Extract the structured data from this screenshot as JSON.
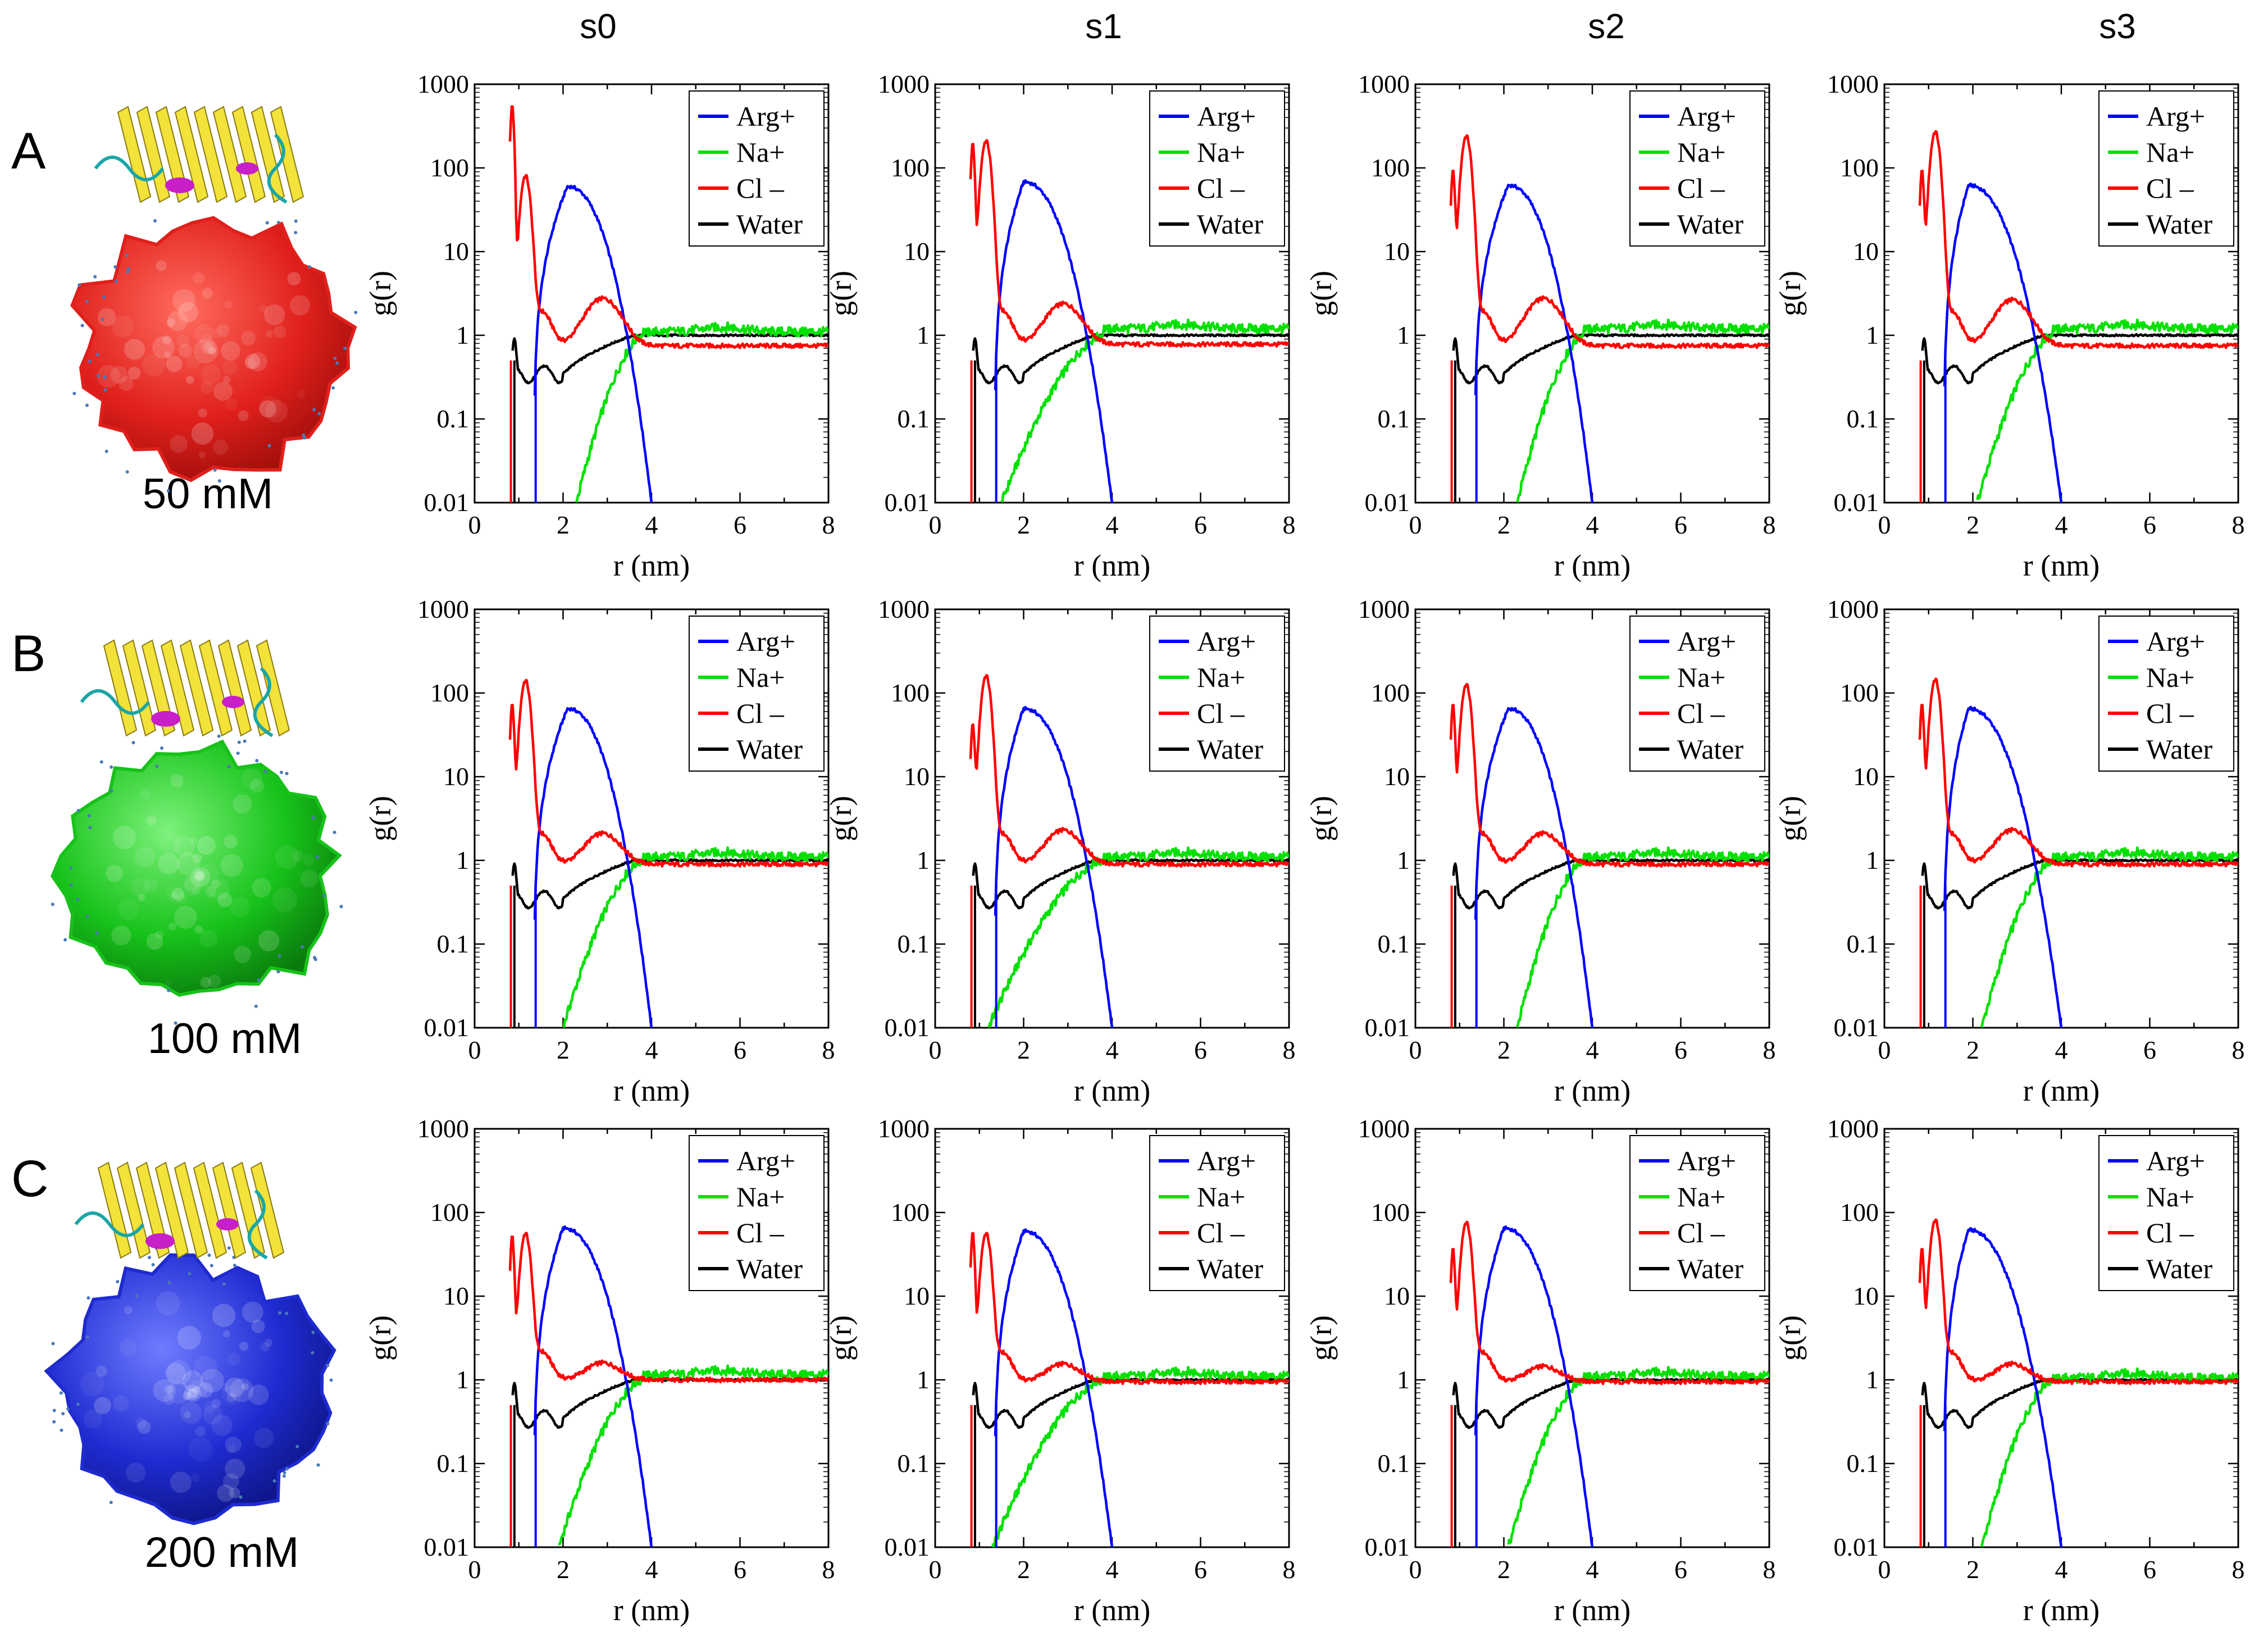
{
  "figure": {
    "column_headers": [
      "s0",
      "s1",
      "s2",
      "s3"
    ],
    "rows": [
      {
        "letter": "A",
        "concentration": "50 mM"
      },
      {
        "letter": "B",
        "concentration": "100 mM"
      },
      {
        "letter": "C",
        "concentration": "200 mM"
      }
    ],
    "protein_label": "protein structure with ion cloud",
    "colors": {
      "arg": "#0000ff",
      "na": "#00e000",
      "cl": "#ff0000",
      "water": "#000000",
      "cloud_A": "#e0201c",
      "cloud_B": "#17c21a",
      "cloud_C": "#1f2bd0",
      "protein": "#f2e23a"
    }
  },
  "chart_data": {
    "type": "line",
    "layout": "grid 3 rows x 4 columns",
    "xlabel": "r (nm)",
    "ylabel": "g(r)",
    "xlim": [
      0,
      8
    ],
    "ylim": [
      0.01,
      1000
    ],
    "yscale": "log",
    "xticks": [
      0,
      2,
      4,
      6,
      8
    ],
    "yticks": [
      0.01,
      0.1,
      1,
      10,
      100,
      1000
    ],
    "ytick_labels": [
      "0.01",
      "0.1",
      "1",
      "10",
      "100",
      "1000"
    ],
    "legend": [
      "Arg+",
      "Na+",
      "Cl –",
      "Water"
    ],
    "legend_position": "top-right",
    "panels": [
      {
        "row": "A",
        "col": "s0",
        "arg_peak": 60,
        "arg_peak_r": 2.1,
        "cl_peak1": 540,
        "cl_peak2": 80,
        "cl_bump": 3.0,
        "cl_plateau": 0.75,
        "na_start_r": 2.3,
        "na_plateau": 1.1
      },
      {
        "row": "A",
        "col": "s1",
        "arg_peak": 68,
        "arg_peak_r": 2.0,
        "cl_peak1": 190,
        "cl_peak2": 210,
        "cl_bump": 2.6,
        "cl_plateau": 0.78,
        "na_start_r": 1.5,
        "na_plateau": 1.2
      },
      {
        "row": "A",
        "col": "s2",
        "arg_peak": 62,
        "arg_peak_r": 2.1,
        "cl_peak1": 90,
        "cl_peak2": 240,
        "cl_bump": 3.0,
        "cl_plateau": 0.75,
        "na_start_r": 2.3,
        "na_plateau": 1.2
      },
      {
        "row": "A",
        "col": "s3",
        "arg_peak": 62,
        "arg_peak_r": 1.9,
        "cl_peak1": 90,
        "cl_peak2": 270,
        "cl_bump": 2.9,
        "cl_plateau": 0.75,
        "na_start_r": 2.1,
        "na_plateau": 1.2
      },
      {
        "row": "B",
        "col": "s0",
        "arg_peak": 65,
        "arg_peak_r": 2.1,
        "cl_peak1": 70,
        "cl_peak2": 140,
        "cl_bump": 2.2,
        "cl_plateau": 0.9,
        "na_start_r": 2.0,
        "na_plateau": 1.1
      },
      {
        "row": "B",
        "col": "s1",
        "arg_peak": 65,
        "arg_peak_r": 2.0,
        "cl_peak1": 40,
        "cl_peak2": 160,
        "cl_bump": 2.4,
        "cl_plateau": 0.9,
        "na_start_r": 1.2,
        "na_plateau": 1.1
      },
      {
        "row": "B",
        "col": "s2",
        "arg_peak": 65,
        "arg_peak_r": 2.1,
        "cl_peak1": 70,
        "cl_peak2": 125,
        "cl_bump": 2.2,
        "cl_plateau": 0.9,
        "na_start_r": 2.3,
        "na_plateau": 1.1
      },
      {
        "row": "B",
        "col": "s3",
        "arg_peak": 65,
        "arg_peak_r": 1.9,
        "cl_peak1": 70,
        "cl_peak2": 145,
        "cl_bump": 2.4,
        "cl_plateau": 0.9,
        "na_start_r": 2.2,
        "na_plateau": 1.1
      },
      {
        "row": "C",
        "col": "s0",
        "arg_peak": 65,
        "arg_peak_r": 2.0,
        "cl_peak1": 50,
        "cl_peak2": 55,
        "cl_bump": 1.6,
        "cl_plateau": 1.0,
        "na_start_r": 1.9,
        "na_plateau": 1.15
      },
      {
        "row": "C",
        "col": "s1",
        "arg_peak": 60,
        "arg_peak_r": 2.0,
        "cl_peak1": 55,
        "cl_peak2": 55,
        "cl_bump": 1.6,
        "cl_plateau": 0.95,
        "na_start_r": 1.3,
        "na_plateau": 1.1
      },
      {
        "row": "C",
        "col": "s2",
        "arg_peak": 65,
        "arg_peak_r": 2.0,
        "cl_peak1": 35,
        "cl_peak2": 75,
        "cl_bump": 1.5,
        "cl_plateau": 0.95,
        "na_start_r": 2.1,
        "na_plateau": 1.1
      },
      {
        "row": "C",
        "col": "s3",
        "arg_peak": 62,
        "arg_peak_r": 1.9,
        "cl_peak1": 35,
        "cl_peak2": 80,
        "cl_bump": 1.6,
        "cl_plateau": 0.95,
        "na_start_r": 2.2,
        "na_plateau": 1.05
      }
    ]
  }
}
